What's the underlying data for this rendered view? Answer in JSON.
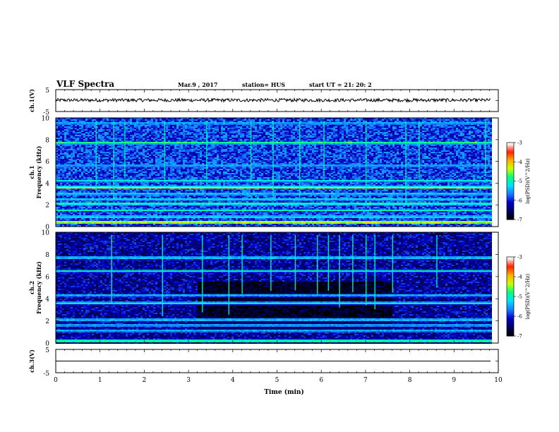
{
  "header": {
    "title": "VLF Spectra",
    "date": "Mar.9 , 2017",
    "station": "station= HUS",
    "start": "start UT = 21: 20: 2"
  },
  "chart_data": [
    {
      "type": "line",
      "name": "ch1-waveform",
      "ylabel": "ch.1(V)",
      "ylim": [
        -5,
        5
      ],
      "ytick_labels": [
        "5",
        "-5"
      ],
      "level": 0.2,
      "noise_amplitude": 0.25
    },
    {
      "type": "heatmap",
      "name": "ch1-spectrogram",
      "ylabel": "ch.1\nFrequency (kHz)",
      "ylim": [
        0,
        10
      ],
      "yticks": [
        0,
        2,
        4,
        6,
        8,
        10
      ],
      "baseline": 0.28,
      "bands": [
        {
          "freq": 0.4,
          "value": 0.95
        },
        {
          "freq": 0.9,
          "value": 0.6
        },
        {
          "freq": 1.5,
          "value": 0.55
        },
        {
          "freq": 2.1,
          "value": 0.7
        },
        {
          "freq": 2.5,
          "value": 0.55
        },
        {
          "freq": 3.0,
          "value": 0.55
        },
        {
          "freq": 3.6,
          "value": 0.8
        },
        {
          "freq": 4.2,
          "value": 0.55
        },
        {
          "freq": 5.6,
          "value": 0.5
        },
        {
          "freq": 7.7,
          "value": 0.65
        },
        {
          "freq": 9.5,
          "value": 0.5
        }
      ],
      "bursts": [
        0.9,
        1.3,
        1.55,
        2.45,
        3.4,
        4.4,
        4.9,
        5.5,
        6.05,
        7.0,
        7.9,
        8.2,
        9.7
      ]
    },
    {
      "type": "heatmap",
      "name": "ch2-spectrogram",
      "ylabel": "ch.2\nFrequency (kHz)",
      "ylim": [
        0,
        10
      ],
      "yticks": [
        0,
        2,
        4,
        6,
        8,
        10
      ],
      "baseline": 0.18,
      "quiet_band_khz": [
        1.0,
        5.5
      ],
      "quiet_window_min": [
        3.2,
        7.6
      ],
      "bands": [
        {
          "freq": 0.2,
          "value": 0.7
        },
        {
          "freq": 1.1,
          "value": 0.5
        },
        {
          "freq": 1.6,
          "value": 0.5
        },
        {
          "freq": 2.1,
          "value": 0.55
        },
        {
          "freq": 3.6,
          "value": 0.6
        },
        {
          "freq": 4.3,
          "value": 0.5
        },
        {
          "freq": 6.5,
          "value": 0.55
        },
        {
          "freq": 7.7,
          "value": 0.55
        }
      ],
      "bursts": [
        1.25,
        2.4,
        3.3,
        3.9,
        4.2,
        4.85,
        5.4,
        5.9,
        6.15,
        6.4,
        6.7,
        7.0,
        7.2,
        7.6,
        8.6
      ]
    },
    {
      "type": "line",
      "name": "ch3-waveform",
      "ylabel": "ch.3(V)",
      "ylim": [
        -5,
        5
      ],
      "ytick_labels": [
        "5",
        "-5"
      ],
      "level": 0.0,
      "noise_amplitude": 0.0
    }
  ],
  "x_axis": {
    "label": "Time (min)",
    "range": [
      0,
      10
    ],
    "ticks": [
      "0",
      "1",
      "2",
      "3",
      "4",
      "5",
      "6",
      "7",
      "8",
      "9",
      "10"
    ],
    "data_end": 9.83
  },
  "colorbar": {
    "label": "log(PSD)(V^2/Hz)",
    "ticks": [
      "-3",
      "-4",
      "-5",
      "-6",
      "-7"
    ],
    "colors": [
      "#000000",
      "#000060",
      "#0000c8",
      "#1a7aff",
      "#00e0ff",
      "#00ff80",
      "#c8ff00",
      "#ffb000",
      "#ff2000",
      "#ffffff"
    ]
  }
}
